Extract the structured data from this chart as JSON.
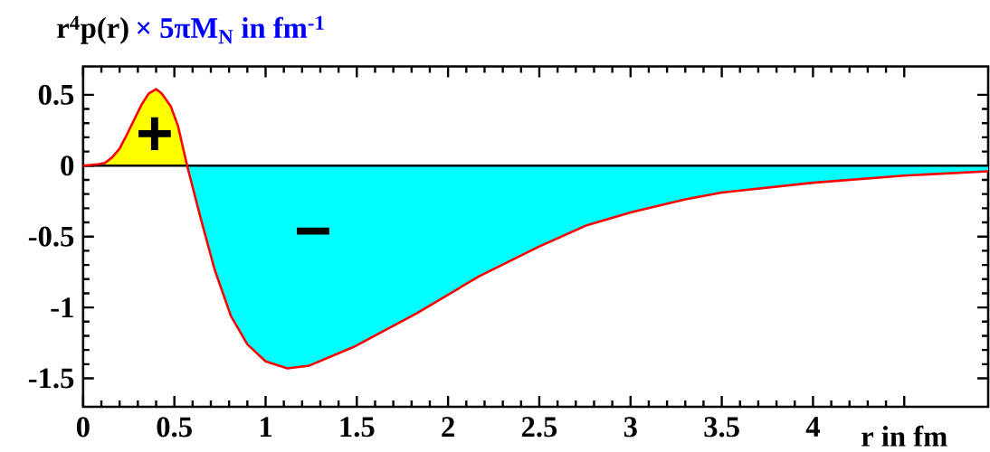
{
  "chart_data": {
    "type": "area",
    "ylabel": "r$^{4}$p(r)",
    "xlabel": "r in fm",
    "annotations": [
      "× 5πM$_{N}$   in fm$^{-1}$",
      "+",
      "−"
    ],
    "xlim": [
      0,
      4.96
    ],
    "ylim": [
      -1.7,
      0.7
    ],
    "xticks": [
      0,
      0.5,
      1,
      1.5,
      2,
      2.5,
      3,
      3.5,
      4,
      {
        "value": 4.5,
        "label": null
      }
    ],
    "yticks": [
      -1.5,
      -1,
      -0.5,
      0,
      0.5
    ],
    "ref_lines": [
      {
        "axis": "y",
        "value": 0,
        "color": "#000000"
      }
    ],
    "series": [
      {
        "color": "#ffff00",
        "x": [
          0,
          0.08,
          0.12,
          0.16,
          0.2,
          0.24,
          0.32,
          0.36,
          0.4,
          0.43,
          0.48,
          0.52,
          0.57
        ],
        "values": [
          0,
          0.01,
          0.02,
          0.06,
          0.12,
          0.22,
          0.43,
          0.51,
          0.54,
          0.51,
          0.42,
          0.28,
          0
        ]
      },
      {
        "color": "#00ffff",
        "x": [
          0.57,
          0.64,
          0.72,
          0.81,
          0.9,
          1.0,
          1.12,
          1.24,
          1.48,
          1.83,
          2.17,
          2.5,
          2.76,
          3.0,
          3.29,
          3.5,
          4.0,
          4.5,
          4.96
        ],
        "values": [
          0,
          -0.35,
          -0.73,
          -1.06,
          -1.26,
          -1.38,
          -1.43,
          -1.41,
          -1.28,
          -1.04,
          -0.78,
          -0.57,
          -0.42,
          -0.33,
          -0.24,
          -0.19,
          -0.12,
          -0.07,
          -0.04
        ]
      },
      {
        "type": "line",
        "color": "#ff0000",
        "x": [
          0,
          0.08,
          0.12,
          0.16,
          0.2,
          0.24,
          0.32,
          0.36,
          0.4,
          0.43,
          0.48,
          0.52,
          0.57,
          0.64,
          0.72,
          0.81,
          0.9,
          1.0,
          1.12,
          1.24,
          1.48,
          1.83,
          2.17,
          2.5,
          2.76,
          3.0,
          3.29,
          3.5,
          4.0,
          4.5,
          4.96
        ],
        "values": [
          0,
          0.01,
          0.02,
          0.06,
          0.12,
          0.22,
          0.43,
          0.51,
          0.54,
          0.51,
          0.42,
          0.28,
          0,
          -0.35,
          -0.73,
          -1.06,
          -1.26,
          -1.38,
          -1.43,
          -1.41,
          -1.28,
          -1.04,
          -0.78,
          -0.57,
          -0.42,
          -0.33,
          -0.24,
          -0.19,
          -0.12,
          -0.07,
          -0.04
        ]
      }
    ]
  }
}
